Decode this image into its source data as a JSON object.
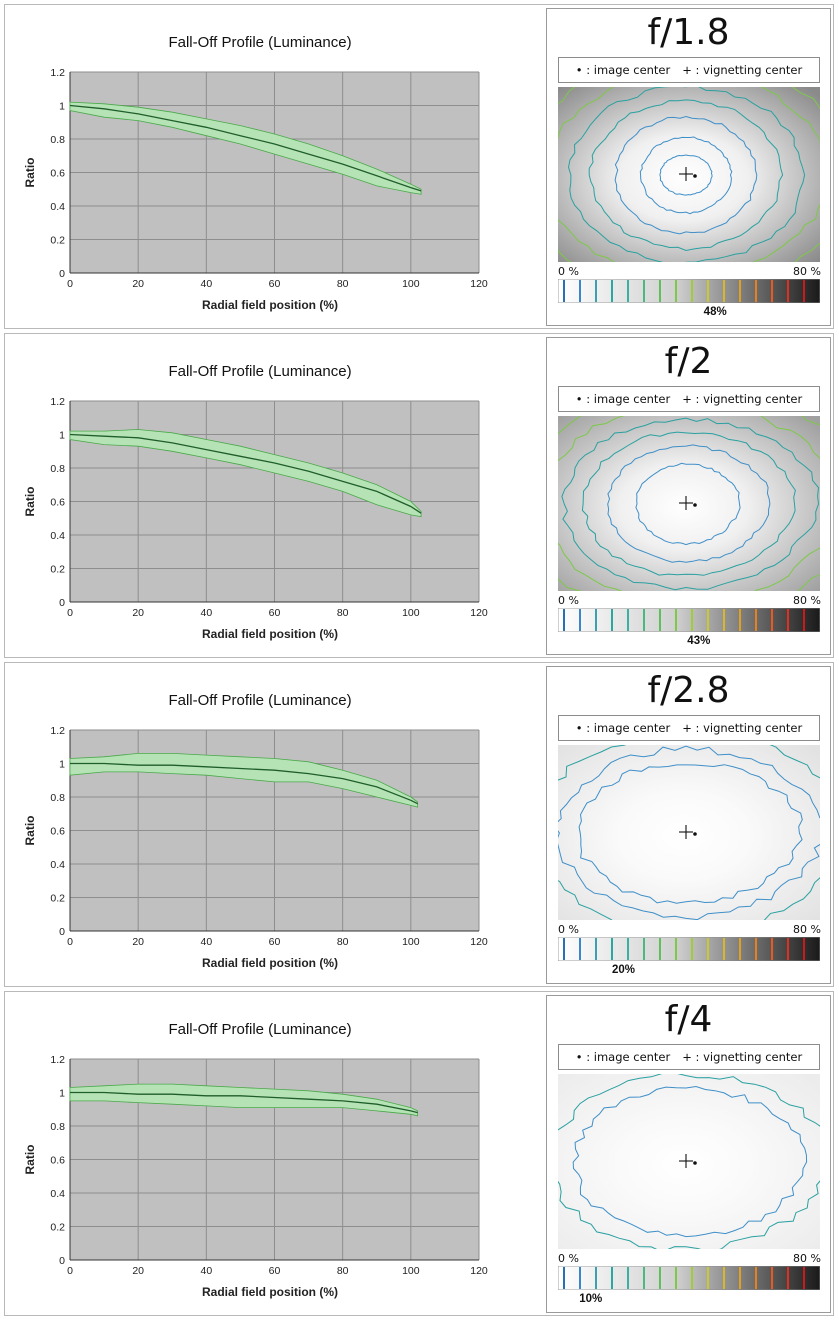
{
  "colors": {
    "plot_bg": "#c0c0c0",
    "band_fill": "#b5e3b5",
    "band_stroke": "#4aa84a",
    "mean_line": "#1f5e2a",
    "contour_blue": "#3f8fc8",
    "contour_teal": "#2aa0a0",
    "contour_green": "#7ec84a",
    "contour_yellow": "#d8c820"
  },
  "legend": {
    "image_center": "• : image center",
    "vignetting_center": "+ : vignetting center"
  },
  "scale_labels": {
    "min": "0 %",
    "max": "80 %"
  },
  "rows": [
    {
      "aperture": "f/1.8",
      "falloff_label": "48%",
      "falloff_value": 48,
      "map_level": 4,
      "chart_data": {
        "type": "area",
        "title": "Fall-Off Profile (Luminance)",
        "xlabel": "Radial field position (%)",
        "ylabel": "Ratio",
        "xlim": [
          0,
          120
        ],
        "ylim": [
          0,
          1.2
        ],
        "xticks": [
          "0",
          "20",
          "40",
          "60",
          "80",
          "100",
          "120"
        ],
        "yticks": [
          "0",
          "0.2",
          "0.4",
          "0.6",
          "0.8",
          "1",
          "1.2"
        ],
        "grid": true,
        "x": [
          0,
          10,
          20,
          30,
          40,
          50,
          60,
          70,
          80,
          90,
          100,
          103
        ],
        "mean": [
          1.0,
          0.98,
          0.95,
          0.91,
          0.87,
          0.82,
          0.77,
          0.71,
          0.65,
          0.58,
          0.51,
          0.49
        ],
        "upper": [
          1.02,
          1.01,
          0.99,
          0.96,
          0.92,
          0.88,
          0.83,
          0.77,
          0.7,
          0.62,
          0.53,
          0.5
        ],
        "lower": [
          0.97,
          0.93,
          0.91,
          0.87,
          0.82,
          0.77,
          0.71,
          0.65,
          0.59,
          0.52,
          0.48,
          0.47
        ]
      }
    },
    {
      "aperture": "f/2",
      "falloff_label": "43%",
      "falloff_value": 43,
      "map_level": 3,
      "chart_data": {
        "type": "area",
        "title": "Fall-Off Profile (Luminance)",
        "xlabel": "Radial field position (%)",
        "ylabel": "Ratio",
        "xlim": [
          0,
          120
        ],
        "ylim": [
          0,
          1.2
        ],
        "xticks": [
          "0",
          "20",
          "40",
          "60",
          "80",
          "100",
          "120"
        ],
        "yticks": [
          "0",
          "0.2",
          "0.4",
          "0.6",
          "0.8",
          "1",
          "1.2"
        ],
        "grid": true,
        "x": [
          0,
          10,
          20,
          30,
          40,
          50,
          60,
          70,
          80,
          90,
          100,
          103
        ],
        "mean": [
          1.0,
          0.99,
          0.98,
          0.95,
          0.91,
          0.87,
          0.83,
          0.78,
          0.72,
          0.66,
          0.57,
          0.53
        ],
        "upper": [
          1.02,
          1.02,
          1.03,
          1.01,
          0.97,
          0.93,
          0.88,
          0.83,
          0.77,
          0.7,
          0.6,
          0.54
        ],
        "lower": [
          0.97,
          0.94,
          0.93,
          0.9,
          0.86,
          0.82,
          0.77,
          0.72,
          0.66,
          0.58,
          0.52,
          0.51
        ]
      }
    },
    {
      "aperture": "f/2.8",
      "falloff_label": "20%",
      "falloff_value": 20,
      "map_level": 2,
      "chart_data": {
        "type": "area",
        "title": "Fall-Off Profile (Luminance)",
        "xlabel": "Radial field position (%)",
        "ylabel": "Ratio",
        "xlim": [
          0,
          120
        ],
        "ylim": [
          0,
          1.2
        ],
        "xticks": [
          "0",
          "20",
          "40",
          "60",
          "80",
          "100",
          "120"
        ],
        "yticks": [
          "0",
          "0.2",
          "0.4",
          "0.6",
          "0.8",
          "1",
          "1.2"
        ],
        "grid": true,
        "x": [
          0,
          10,
          20,
          30,
          40,
          50,
          60,
          70,
          80,
          90,
          100,
          102
        ],
        "mean": [
          1.0,
          1.0,
          0.99,
          0.99,
          0.98,
          0.97,
          0.96,
          0.94,
          0.91,
          0.86,
          0.78,
          0.76
        ],
        "upper": [
          1.03,
          1.04,
          1.06,
          1.06,
          1.05,
          1.04,
          1.03,
          1.01,
          0.96,
          0.9,
          0.8,
          0.77
        ],
        "lower": [
          0.93,
          0.95,
          0.95,
          0.94,
          0.93,
          0.91,
          0.89,
          0.89,
          0.85,
          0.8,
          0.75,
          0.74
        ]
      }
    },
    {
      "aperture": "f/4",
      "falloff_label": "10%",
      "falloff_value": 10,
      "map_level": 1,
      "chart_data": {
        "type": "area",
        "title": "Fall-Off Profile (Luminance)",
        "xlabel": "Radial field position (%)",
        "ylabel": "Ratio",
        "xlim": [
          0,
          120
        ],
        "ylim": [
          0,
          1.2
        ],
        "xticks": [
          "0",
          "20",
          "40",
          "60",
          "80",
          "100",
          "120"
        ],
        "yticks": [
          "0",
          "0.2",
          "0.4",
          "0.6",
          "0.8",
          "1",
          "1.2"
        ],
        "grid": true,
        "x": [
          0,
          10,
          20,
          30,
          40,
          50,
          60,
          70,
          80,
          90,
          100,
          102
        ],
        "mean": [
          1.0,
          1.0,
          0.99,
          0.99,
          0.98,
          0.98,
          0.97,
          0.96,
          0.95,
          0.93,
          0.89,
          0.88
        ],
        "upper": [
          1.03,
          1.04,
          1.05,
          1.05,
          1.04,
          1.03,
          1.02,
          1.01,
          0.99,
          0.96,
          0.91,
          0.89
        ],
        "lower": [
          0.95,
          0.95,
          0.94,
          0.93,
          0.92,
          0.91,
          0.91,
          0.91,
          0.91,
          0.89,
          0.87,
          0.86
        ]
      }
    }
  ]
}
